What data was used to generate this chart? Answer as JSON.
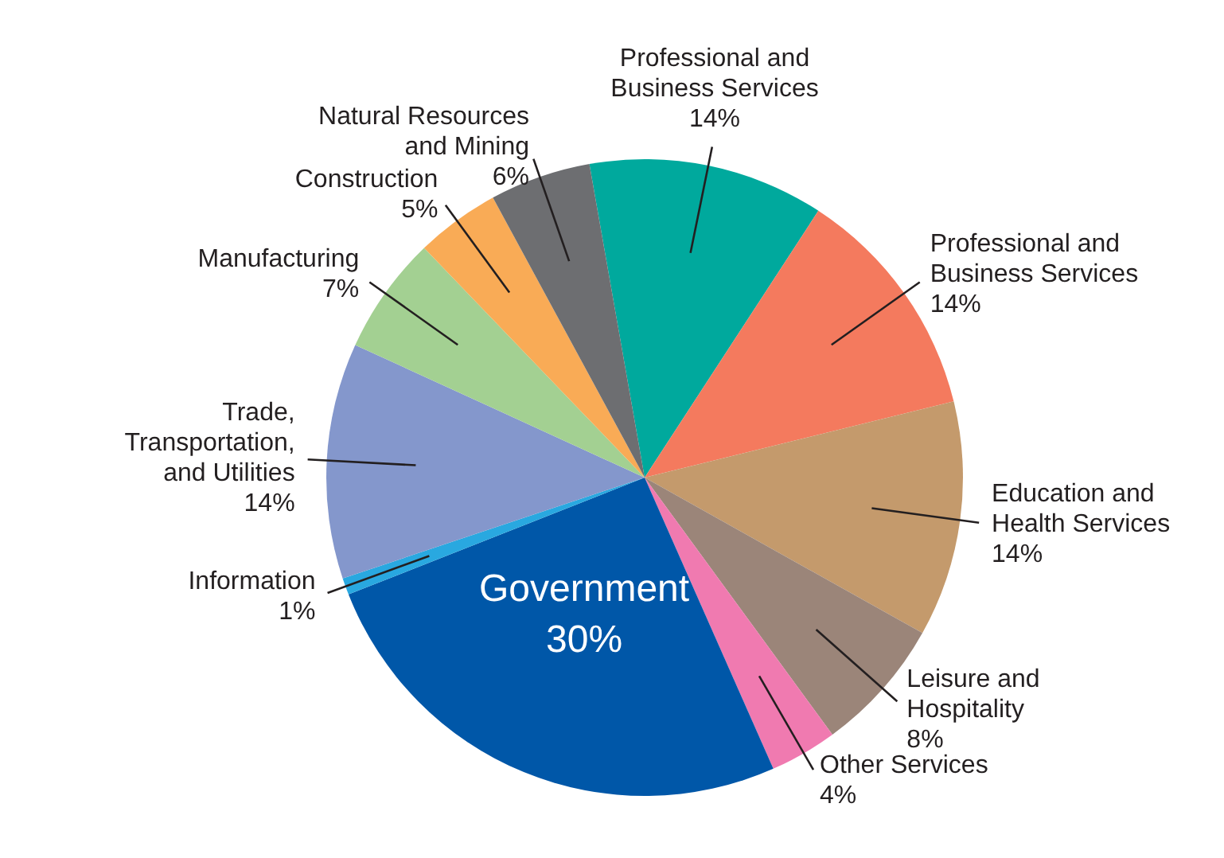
{
  "chart_data": {
    "type": "pie",
    "categories": [
      "Professional and Business Services",
      "Professional and Business Services",
      "Education and Health Services",
      "Leisure and Hospitality",
      "Other Services",
      "Government",
      "Information",
      "Trade, Transportation, and Utilities",
      "Manufacturing",
      "Construction",
      "Natural Resources and Mining"
    ],
    "values": [
      14,
      14,
      14,
      8,
      4,
      30,
      1,
      14,
      7,
      5,
      6
    ],
    "value_labels": [
      "14%",
      "14%",
      "14%",
      "8%",
      "4%",
      "30%",
      "1%",
      "14%",
      "7%",
      "5%",
      "6%"
    ],
    "colors": [
      "#00a99d",
      "#f47a5e",
      "#c49a6c",
      "#9b8579",
      "#f07ab0",
      "#0057a8",
      "#29a8e0",
      "#8497cc",
      "#a3d092",
      "#f9ab56",
      "#6d6e71"
    ],
    "legend": false
  }
}
